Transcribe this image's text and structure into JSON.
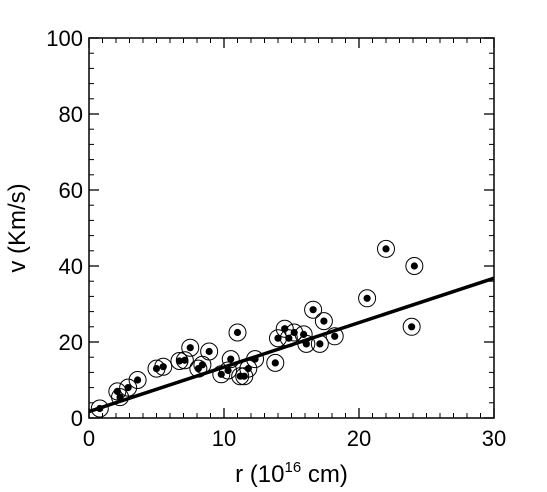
{
  "chart_data": {
    "type": "scatter",
    "title": "",
    "xlabel_prefix": "r (10",
    "xlabel_superscript": "16",
    "xlabel_suffix": " cm)",
    "ylabel": "v (Km/s)",
    "xlim": [
      0,
      30
    ],
    "ylim": [
      0,
      100
    ],
    "xticks": [
      0,
      10,
      20,
      30
    ],
    "yticks": [
      0,
      20,
      40,
      60,
      80,
      100
    ],
    "grid": false,
    "legend": "none",
    "marker": "filled dot inside open circle",
    "colors": {
      "marker": "#000000",
      "line": "#000000",
      "axes": "#000000"
    },
    "fit_line": {
      "slope": 1.17,
      "intercept": 1.7
    },
    "points": [
      {
        "x": 0.8,
        "y": 2.5
      },
      {
        "x": 2.1,
        "y": 7.0
      },
      {
        "x": 2.3,
        "y": 5.5
      },
      {
        "x": 2.9,
        "y": 8.0
      },
      {
        "x": 3.6,
        "y": 10.0
      },
      {
        "x": 5.0,
        "y": 13.0
      },
      {
        "x": 5.5,
        "y": 13.5
      },
      {
        "x": 6.7,
        "y": 15.0
      },
      {
        "x": 7.1,
        "y": 15.2
      },
      {
        "x": 7.5,
        "y": 18.5
      },
      {
        "x": 8.1,
        "y": 13.0
      },
      {
        "x": 8.4,
        "y": 14.0
      },
      {
        "x": 8.9,
        "y": 17.5
      },
      {
        "x": 9.8,
        "y": 11.5
      },
      {
        "x": 10.3,
        "y": 12.5
      },
      {
        "x": 10.5,
        "y": 15.5
      },
      {
        "x": 11.0,
        "y": 22.5
      },
      {
        "x": 11.2,
        "y": 11.0
      },
      {
        "x": 11.5,
        "y": 11.0
      },
      {
        "x": 11.8,
        "y": 13.0
      },
      {
        "x": 12.3,
        "y": 15.5
      },
      {
        "x": 13.8,
        "y": 14.5
      },
      {
        "x": 14.0,
        "y": 21.0
      },
      {
        "x": 14.5,
        "y": 23.5
      },
      {
        "x": 14.8,
        "y": 21.0
      },
      {
        "x": 15.2,
        "y": 22.5
      },
      {
        "x": 15.9,
        "y": 22.0
      },
      {
        "x": 16.1,
        "y": 19.5
      },
      {
        "x": 16.6,
        "y": 28.5
      },
      {
        "x": 17.1,
        "y": 19.5
      },
      {
        "x": 17.4,
        "y": 25.5
      },
      {
        "x": 18.2,
        "y": 21.5
      },
      {
        "x": 20.6,
        "y": 31.5
      },
      {
        "x": 22.0,
        "y": 44.5
      },
      {
        "x": 23.9,
        "y": 24.0
      },
      {
        "x": 24.1,
        "y": 40.0
      }
    ]
  }
}
